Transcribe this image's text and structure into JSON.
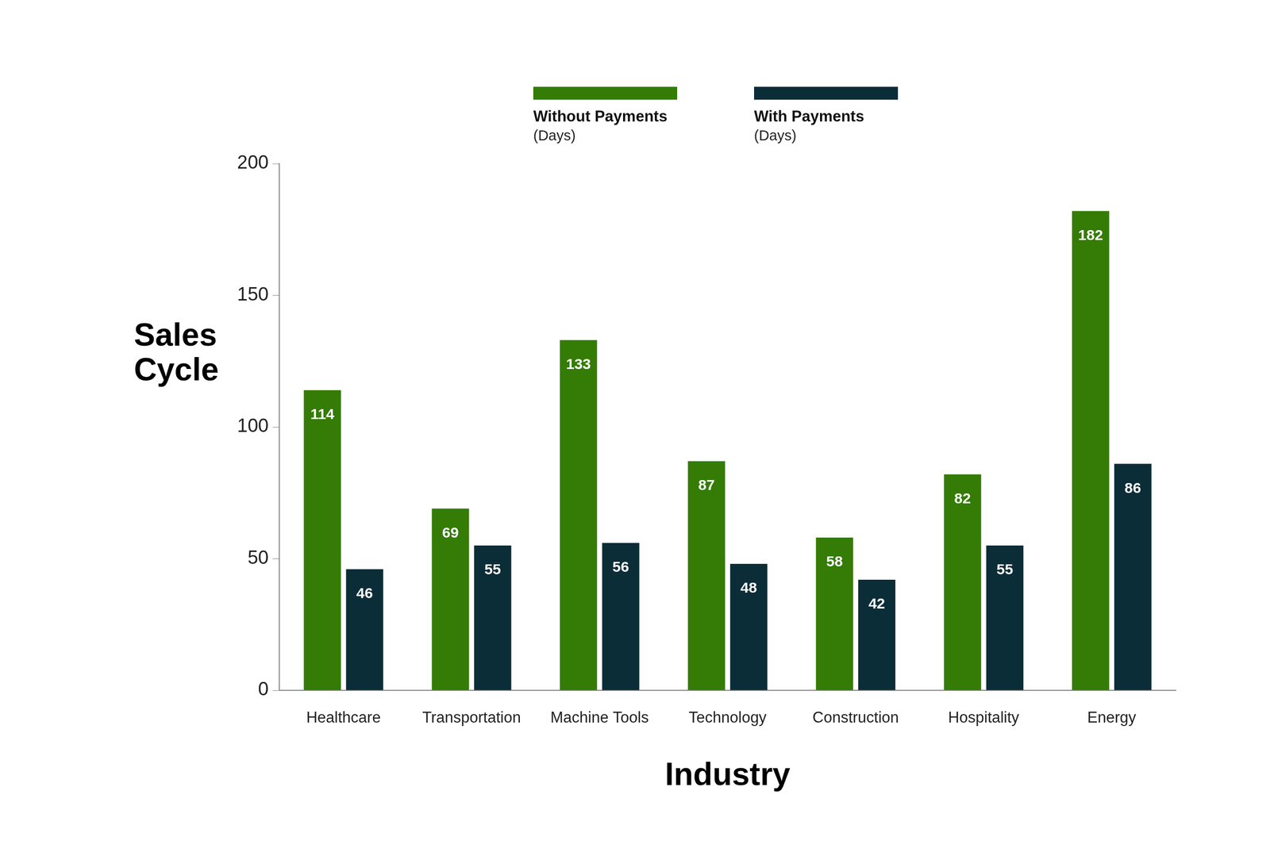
{
  "chart_data": {
    "type": "bar",
    "x_label": "Industry",
    "y_label": "Sales Cycle",
    "legend_note": "(Days)",
    "categories": [
      "Healthcare",
      "Transportation",
      "Machine Tools",
      "Technology",
      "Construction",
      "Hospitality",
      "Energy"
    ],
    "series": [
      {
        "name": "Without Payments",
        "color": "#347c06",
        "values": [
          114,
          69,
          133,
          87,
          58,
          82,
          182
        ]
      },
      {
        "name": "With Payments",
        "color": "#0b2d38",
        "values": [
          46,
          55,
          56,
          48,
          42,
          55,
          86
        ]
      }
    ],
    "ylim": [
      0,
      200
    ],
    "yticks": [
      0,
      50,
      100,
      150,
      200
    ],
    "grid": false,
    "legend": "top",
    "data_labels": true
  }
}
